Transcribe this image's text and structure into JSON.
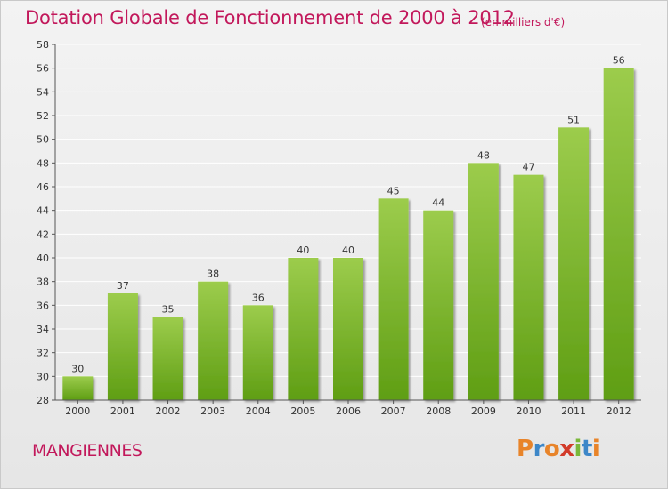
{
  "chart_data": {
    "type": "bar",
    "title": "Dotation Globale de Fonctionnement de 2000 à 2012",
    "subtitle": "(en milliers d'€)",
    "categories": [
      "2000",
      "2001",
      "2002",
      "2003",
      "2004",
      "2005",
      "2006",
      "2007",
      "2008",
      "2009",
      "2010",
      "2011",
      "2012"
    ],
    "values": [
      30,
      37,
      35,
      38,
      36,
      40,
      40,
      45,
      44,
      48,
      47,
      51,
      56
    ],
    "ylim": [
      28,
      58
    ],
    "yticks": [
      28,
      30,
      32,
      34,
      36,
      38,
      40,
      42,
      44,
      46,
      48,
      50,
      52,
      54,
      56,
      58
    ],
    "grid": true,
    "colors": {
      "bar_top": "#9ccc4c",
      "bar_bottom": "#5f9e14",
      "grid": "#ffffff",
      "text": "#333333"
    }
  },
  "footer": {
    "commune": "MANGIENNES",
    "brand": "Proxiti",
    "brand_colors": [
      "#e8842a",
      "#3d87c8",
      "#e8842a",
      "#d23b2a",
      "#7ab83a",
      "#3d87c8",
      "#e8842a"
    ]
  }
}
